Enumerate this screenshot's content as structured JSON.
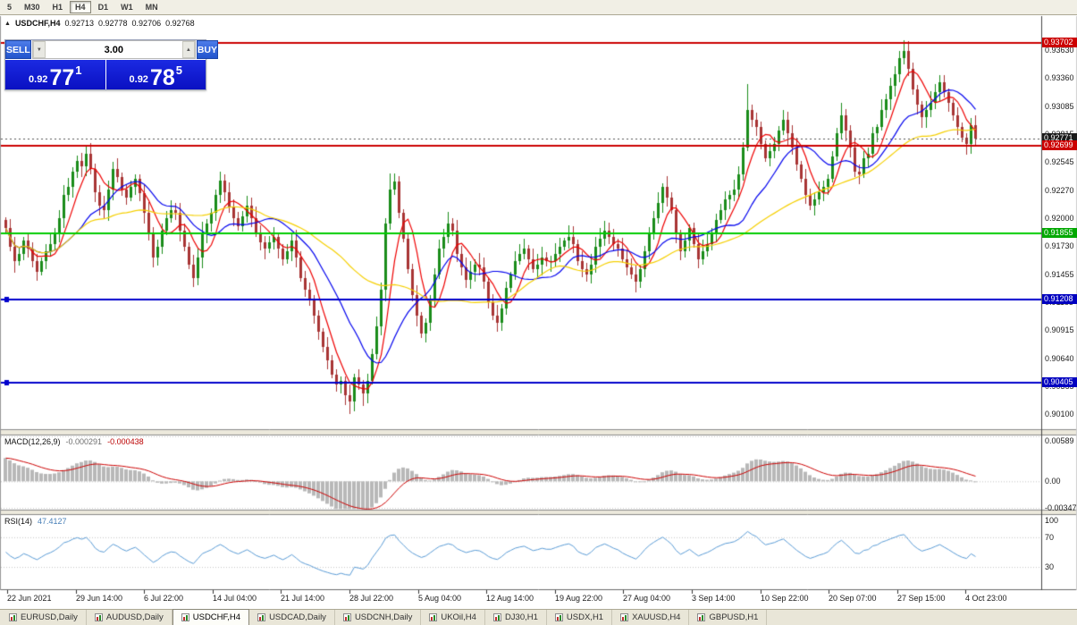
{
  "toolbar": {
    "timeframes": [
      {
        "label": "5",
        "active": false
      },
      {
        "label": "M30",
        "active": false
      },
      {
        "label": "H1",
        "active": false
      },
      {
        "label": "H4",
        "active": true
      },
      {
        "label": "D1",
        "active": false
      },
      {
        "label": "W1",
        "active": false
      },
      {
        "label": "MN",
        "active": false
      }
    ]
  },
  "window": {
    "toggle_glyph": "▲",
    "symbol_period": "USDCHF,H4",
    "open": "0.92713",
    "high": "0.92778",
    "low": "0.92706",
    "close": "0.92768"
  },
  "trade_panel": {
    "sell_label": "SELL",
    "buy_label": "BUY",
    "volume": "3.00",
    "spinner_down": "▼",
    "spinner_up": "▲",
    "sell_price": {
      "prefix": "0.92",
      "pips": "77",
      "sup": "1"
    },
    "buy_price": {
      "prefix": "0.92",
      "pips": "78",
      "sup": "5"
    },
    "colors": {
      "button_blue": "#2a5fd8",
      "panel_blue": "#0d13cf"
    }
  },
  "chart_data": {
    "type": "candlestick",
    "symbol": "USDCHF",
    "timeframe": "H4",
    "title": "USDCHF,H4 0.92713 0.92778 0.92706 0.92768",
    "price_range": [
      0.8995,
      0.9396
    ],
    "y_ticks": [
      "0.93630",
      "0.93360",
      "0.93085",
      "0.92815",
      "0.92545",
      "0.92270",
      "0.92000",
      "0.91730",
      "0.91455",
      "0.91185",
      "0.90915",
      "0.90640",
      "0.90365",
      "0.90100"
    ],
    "x_labels": [
      "22 Jun 2021",
      "29 Jun 14:00",
      "6 Jul 22:00",
      "14 Jul 04:00",
      "21 Jul 14:00",
      "28 Jul 22:00",
      "5 Aug 04:00",
      "12 Aug 14:00",
      "19 Aug 22:00",
      "27 Aug 04:00",
      "3 Sep 14:00",
      "10 Sep 22:00",
      "20 Sep 07:00",
      "27 Sep 15:00",
      "4 Oct 23:00"
    ],
    "bull_color": "#1a8c1a",
    "bear_color": "#a83434",
    "closes": [
      0.919,
      0.9172,
      0.9158,
      0.9165,
      0.9178,
      0.917,
      0.9158,
      0.9148,
      0.9158,
      0.9168,
      0.9175,
      0.9185,
      0.92,
      0.9222,
      0.923,
      0.9245,
      0.9255,
      0.925,
      0.9262,
      0.9248,
      0.9225,
      0.9212,
      0.9208,
      0.9228,
      0.9248,
      0.924,
      0.9228,
      0.922,
      0.923,
      0.9238,
      0.9224,
      0.9205,
      0.9185,
      0.9162,
      0.9172,
      0.9188,
      0.92,
      0.9208,
      0.9205,
      0.9188,
      0.9172,
      0.9155,
      0.9142,
      0.9162,
      0.9185,
      0.9195,
      0.9205,
      0.9222,
      0.9236,
      0.9225,
      0.921,
      0.92,
      0.9192,
      0.9202,
      0.9212,
      0.92,
      0.9185,
      0.9176,
      0.917,
      0.9176,
      0.9182,
      0.917,
      0.916,
      0.9168,
      0.9178,
      0.9162,
      0.9142,
      0.913,
      0.912,
      0.9105,
      0.909,
      0.9075,
      0.9062,
      0.9048,
      0.9038,
      0.9042,
      0.9028,
      0.9022,
      0.9045,
      0.9038,
      0.903,
      0.9042,
      0.9068,
      0.9095,
      0.913,
      0.9195,
      0.9228,
      0.9235,
      0.9205,
      0.918,
      0.915,
      0.9125,
      0.9105,
      0.9088,
      0.9098,
      0.912,
      0.9145,
      0.917,
      0.9182,
      0.9195,
      0.9188,
      0.9165,
      0.9152,
      0.914,
      0.9148,
      0.9155,
      0.9152,
      0.9138,
      0.9118,
      0.9105,
      0.9098,
      0.9112,
      0.9132,
      0.9145,
      0.9158,
      0.9165,
      0.917,
      0.916,
      0.915,
      0.9155,
      0.9162,
      0.9158,
      0.9158,
      0.9165,
      0.9172,
      0.9178,
      0.9182,
      0.9175,
      0.9158,
      0.915,
      0.9145,
      0.9155,
      0.9172,
      0.918,
      0.9188,
      0.9182,
      0.9175,
      0.917,
      0.916,
      0.9152,
      0.9145,
      0.9138,
      0.915,
      0.9168,
      0.9185,
      0.92,
      0.9215,
      0.923,
      0.922,
      0.9208,
      0.9185,
      0.9168,
      0.9178,
      0.919,
      0.9175,
      0.916,
      0.9168,
      0.9175,
      0.9185,
      0.9198,
      0.9208,
      0.9218,
      0.9222,
      0.9228,
      0.9242,
      0.9268,
      0.9305,
      0.9295,
      0.9288,
      0.9272,
      0.9258,
      0.9265,
      0.9272,
      0.9285,
      0.9295,
      0.9282,
      0.9268,
      0.9252,
      0.9238,
      0.9222,
      0.9212,
      0.9218,
      0.9225,
      0.923,
      0.9238,
      0.926,
      0.9282,
      0.93,
      0.9285,
      0.9268,
      0.9245,
      0.9242,
      0.9258,
      0.9262,
      0.9282,
      0.9288,
      0.9305,
      0.9315,
      0.9328,
      0.934,
      0.9355,
      0.9362,
      0.9345,
      0.9325,
      0.931,
      0.9298,
      0.9305,
      0.9312,
      0.9322,
      0.9332,
      0.9322,
      0.9312,
      0.93,
      0.9288,
      0.9278,
      0.9272,
      0.929,
      0.92768
    ],
    "spikes": [
      {
        "i": 18,
        "high": 0.927
      },
      {
        "i": 42,
        "low": 0.9133
      },
      {
        "i": 77,
        "low": 0.901
      },
      {
        "i": 80,
        "low": 0.9018
      },
      {
        "i": 86,
        "high": 0.9243
      },
      {
        "i": 110,
        "low": 0.9093
      },
      {
        "i": 166,
        "high": 0.933
      },
      {
        "i": 187,
        "high": 0.9312
      },
      {
        "i": 201,
        "high": 0.9372
      },
      {
        "i": 217,
        "high": 0.92778,
        "low": 0.92706
      }
    ],
    "moving_averages": [
      {
        "period": 6,
        "color": "#ee0000"
      },
      {
        "period": 16,
        "color": "#0000ee"
      },
      {
        "period": 40,
        "color": "#f5cf00"
      }
    ],
    "levels": [
      {
        "value": 0.93702,
        "color": "#cc0000",
        "width": 2,
        "label": "0.93702",
        "label_bg": "#cc0000"
      },
      {
        "value": 0.92771,
        "color": "#555555",
        "width": 1,
        "style": "dotted",
        "label": "0.92771",
        "label_bg": "#1a1a1a"
      },
      {
        "value": 0.92699,
        "color": "#cc0000",
        "width": 2,
        "label": "0.92699",
        "label_bg": "#cc0000"
      },
      {
        "value": 0.91855,
        "color": "#00cc00",
        "width": 2,
        "label": "0.91855",
        "label_bg": "#00a800"
      },
      {
        "value": 0.91208,
        "color": "#0000cc",
        "width": 2,
        "label": "0.91208",
        "label_bg": "#0000c0",
        "handles": true
      },
      {
        "value": 0.90405,
        "color": "#0000cc",
        "width": 2,
        "label": "0.90405",
        "label_bg": "#0000c0",
        "handles": true
      }
    ],
    "indicators": {
      "macd": {
        "label": "MACD(12,26,9)",
        "values": [
          "-0.000291",
          "-0.000438"
        ],
        "ticks": [
          "0.00589",
          "0.00",
          "-0.00347"
        ],
        "tick_values": [
          0.00589,
          0,
          -0.00347
        ],
        "range": [
          -0.0037,
          0.006
        ],
        "hist_color": "#b8b8b8",
        "signal_color": "#cc0000"
      },
      "rsi": {
        "label": "RSI(14)",
        "value": "47.4127",
        "ticks": [
          "100",
          "70",
          "30"
        ],
        "tick_values": [
          100,
          70,
          30
        ],
        "range": [
          0,
          100
        ],
        "level_lines": [
          70,
          30
        ],
        "line_color": "#5a9bd5"
      }
    }
  },
  "tabs": [
    {
      "label": "EURUSD,Daily",
      "active": false
    },
    {
      "label": "AUDUSD,Daily",
      "active": false
    },
    {
      "label": "USDCHF,H4",
      "active": true
    },
    {
      "label": "USDCAD,Daily",
      "active": false
    },
    {
      "label": "USDCNH,Daily",
      "active": false
    },
    {
      "label": "UKOil,H4",
      "active": false
    },
    {
      "label": "DJ30,H1",
      "active": false
    },
    {
      "label": "USDX,H1",
      "active": false
    },
    {
      "label": "XAUUSD,H4",
      "active": false
    },
    {
      "label": "GBPUSD,H1",
      "active": false
    }
  ]
}
